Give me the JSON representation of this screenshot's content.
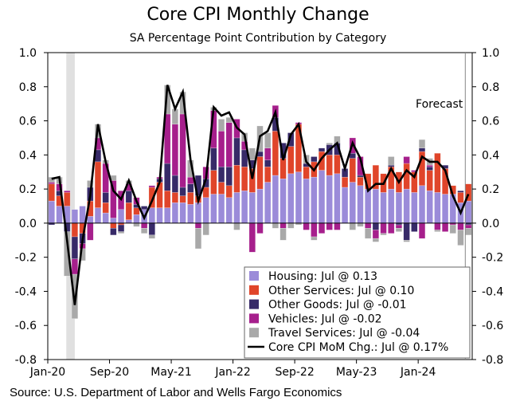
{
  "chart_data": {
    "type": "bar",
    "stacked": true,
    "title": "Core CPI Monthly Change",
    "subtitle": "SA Percentage Point Contribution by Category",
    "source": "Source: U.S. Department of Labor and Wells Fargo Economics",
    "ylim": [
      -0.8,
      1.0
    ],
    "yticks": [
      "1.0",
      "0.8",
      "0.6",
      "0.4",
      "0.2",
      "0.0",
      "-0.2",
      "-0.4",
      "-0.6",
      "-0.8"
    ],
    "ytick_values": [
      1.0,
      0.8,
      0.6,
      0.4,
      0.2,
      0.0,
      -0.2,
      -0.4,
      -0.6,
      -0.8
    ],
    "secondary_axis": true,
    "grid": false,
    "legend_placement": "bottom-right",
    "xtick_labels": [
      {
        "label": "Jan-20",
        "month_index": 0
      },
      {
        "label": "Sep-20",
        "month_index": 8
      },
      {
        "label": "May-21",
        "month_index": 16
      },
      {
        "label": "Jan-22",
        "month_index": 24
      },
      {
        "label": "Sep-22",
        "month_index": 32
      },
      {
        "label": "May-23",
        "month_index": 40
      },
      {
        "label": "Jan-24",
        "month_index": 48
      }
    ],
    "first_month": "Jan-20",
    "last_month": "Jul-24",
    "recession_shading_months": [
      "Mar-20",
      "Apr-20"
    ],
    "forecast_label": "Forecast",
    "forecast_start_month": "Jul-24",
    "series": [
      {
        "name": "Housing: Jul @ 0.13",
        "color": "#9b8bd9",
        "values": [
          0.13,
          0.1,
          0.1,
          0.08,
          0.1,
          0.04,
          0.09,
          0.06,
          0.03,
          0.08,
          0.02,
          0.05,
          0.08,
          0.09,
          0.09,
          0.09,
          0.12,
          0.12,
          0.11,
          0.12,
          0.15,
          0.17,
          0.17,
          0.15,
          0.18,
          0.19,
          0.18,
          0.2,
          0.24,
          0.28,
          0.26,
          0.29,
          0.3,
          0.26,
          0.27,
          0.31,
          0.28,
          0.29,
          0.21,
          0.24,
          0.22,
          0.2,
          0.2,
          0.18,
          0.2,
          0.18,
          0.2,
          0.18,
          0.22,
          0.19,
          0.18,
          0.17,
          0.17,
          0.12,
          0.13
        ]
      },
      {
        "name": "Other Services: Jul @ 0.10",
        "color": "#e0452a",
        "values": [
          0.1,
          0.06,
          0.08,
          -0.08,
          -0.06,
          0.09,
          0.27,
          0.06,
          -0.03,
          -0.01,
          0.1,
          0.04,
          0.0,
          0.12,
          0.15,
          0.1,
          0.06,
          0.04,
          0.07,
          0.04,
          0.06,
          0.14,
          0.07,
          0.07,
          0.16,
          0.14,
          0.14,
          0.19,
          0.09,
          0.26,
          0.12,
          0.16,
          0.28,
          0.07,
          0.09,
          0.11,
          0.12,
          0.11,
          0.06,
          0.14,
          0.05,
          0.09,
          0.14,
          0.11,
          0.13,
          0.12,
          0.15,
          0.12,
          0.2,
          0.12,
          0.23,
          0.15,
          0.05,
          0.06,
          0.1
        ]
      },
      {
        "name": "Other Goods: Jul @ -0.01",
        "color": "#372a68",
        "values": [
          -0.01,
          0.03,
          -0.05,
          -0.13,
          -0.06,
          0.08,
          0.07,
          0.06,
          -0.04,
          -0.04,
          0.07,
          0.02,
          0.02,
          -0.07,
          0.02,
          0.16,
          0.1,
          0.05,
          0.05,
          0.12,
          0.05,
          0.13,
          0.09,
          0.11,
          0.16,
          0.1,
          0.05,
          0.03,
          0.04,
          0.08,
          0.09,
          0.08,
          0.0,
          0.02,
          0.03,
          0.02,
          0.06,
          0.07,
          0.05,
          0.03,
          0.01,
          0.0,
          -0.04,
          0.0,
          0.01,
          -0.01,
          -0.1,
          -0.05,
          0.02,
          0.02,
          0.0,
          0.02,
          0.0,
          0.01,
          -0.01
        ]
      },
      {
        "name": "Vehicles: Jul @ -0.02",
        "color": "#a61f8c",
        "values": [
          0.01,
          0.04,
          0.01,
          -0.09,
          -0.03,
          -0.1,
          0.07,
          0.17,
          0.22,
          0.11,
          0.04,
          0.04,
          -0.03,
          0.01,
          0.01,
          0.29,
          0.3,
          0.43,
          0.04,
          -0.03,
          0.07,
          0.22,
          0.21,
          0.26,
          0.11,
          0.05,
          -0.17,
          -0.06,
          0.07,
          0.07,
          -0.03,
          0.0,
          0.01,
          -0.04,
          -0.08,
          -0.06,
          -0.04,
          -0.04,
          0.0,
          0.09,
          0.11,
          -0.03,
          -0.05,
          -0.06,
          -0.06,
          -0.02,
          0.04,
          0.01,
          -0.09,
          0.01,
          -0.04,
          -0.05,
          -0.01,
          -0.04,
          -0.02
        ]
      },
      {
        "name": "Travel Services: Jul @ -0.04",
        "color": "#a9a9a9",
        "values": [
          0.03,
          0.04,
          -0.26,
          -0.26,
          -0.07,
          0.04,
          0.08,
          0.02,
          0.03,
          -0.01,
          0.02,
          -0.02,
          -0.03,
          -0.02,
          0.0,
          0.17,
          0.09,
          0.13,
          0.1,
          -0.12,
          -0.07,
          0.02,
          0.07,
          0.03,
          -0.04,
          0.05,
          0.07,
          0.15,
          0.09,
          -0.03,
          -0.07,
          -0.03,
          -0.01,
          0.05,
          -0.02,
          0.0,
          0.01,
          0.04,
          0.0,
          -0.04,
          -0.02,
          -0.06,
          -0.02,
          -0.01,
          0.05,
          -0.02,
          -0.01,
          0.0,
          0.05,
          0.04,
          -0.01,
          0.0,
          -0.05,
          -0.09,
          -0.04
        ]
      }
    ],
    "line": {
      "name": "Core CPI MoM Chg.: Jul @ 0.17%",
      "color": "#000000",
      "values": [
        0.26,
        0.27,
        -0.1,
        -0.48,
        -0.1,
        0.16,
        0.58,
        0.36,
        0.19,
        0.14,
        0.25,
        0.13,
        0.03,
        0.13,
        0.24,
        0.81,
        0.67,
        0.77,
        0.37,
        0.13,
        0.26,
        0.68,
        0.63,
        0.65,
        0.56,
        0.52,
        0.26,
        0.51,
        0.54,
        0.65,
        0.37,
        0.52,
        0.58,
        0.36,
        0.31,
        0.38,
        0.43,
        0.47,
        0.32,
        0.47,
        0.38,
        0.19,
        0.23,
        0.23,
        0.32,
        0.24,
        0.31,
        0.27,
        0.39,
        0.36,
        0.36,
        0.31,
        0.16,
        0.06,
        0.17
      ]
    }
  }
}
